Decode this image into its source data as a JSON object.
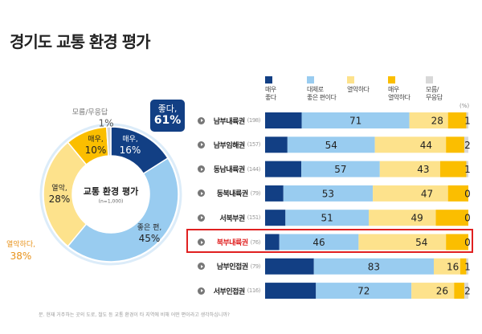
{
  "title": "경기도 교통 환경 평가",
  "footnote": "문. 현재 거주하는 곳의 도로, 철도 등 교통 환경이 타 지역에 비해 어떤 편이라고 생각하십니까?",
  "colors": {
    "very_good": "#123f84",
    "good": "#99ccf0",
    "bad": "#fde28c",
    "very_bad": "#fbbe00",
    "unknown": "#d8d8d8",
    "highlight": "#e02020"
  },
  "chart_data": [
    {
      "type": "pie",
      "variant": "donut",
      "center_title": "교통 환경 평가",
      "center_subtitle": "(n=1,000)",
      "slices": [
        {
          "label_line1": "매우,",
          "value": 16,
          "pct": "16%",
          "color": "#123f84"
        },
        {
          "label_line1": "좋은 편,",
          "value": 45,
          "pct": "45%",
          "color": "#99ccf0"
        },
        {
          "label_line1": "열악,",
          "value": 28,
          "pct": "28%",
          "color": "#fde28c"
        },
        {
          "label_line1": "매우,",
          "value": 10,
          "pct": "10%",
          "color": "#fbbe00"
        },
        {
          "label_line1": "모름/무응답",
          "value": 1,
          "pct": "1%",
          "color": "#d8d8d8"
        }
      ],
      "groups": {
        "good": {
          "label": "좋다,",
          "pct": "61%"
        },
        "bad": {
          "label": "열악하다,",
          "pct": "38%"
        }
      }
    },
    {
      "type": "bar",
      "orientation": "horizontal",
      "stacked": true,
      "unit": "(%)",
      "legend": [
        "매우\n좋다",
        "대체로\n좋은 편이다",
        "열악하다",
        "매우\n열악하다",
        "모름/\n무응답"
      ],
      "legend_placement": "top",
      "rows": [
        {
          "name": "남부내륙권",
          "n": "(198)",
          "very_good": 18,
          "good": 53,
          "good_total": 71,
          "bad": 19,
          "very_bad": 9,
          "bad_total": 28,
          "unknown": 1
        },
        {
          "name": "남부임해권",
          "n": "(157)",
          "very_good": 11,
          "good": 43,
          "good_total": 54,
          "bad": 35,
          "very_bad": 9,
          "bad_total": 44,
          "unknown": 2
        },
        {
          "name": "동남내륙권",
          "n": "(144)",
          "very_good": 18,
          "good": 39,
          "good_total": 57,
          "bad": 30,
          "very_bad": 13,
          "bad_total": 43,
          "unknown": 1
        },
        {
          "name": "동북내륙권",
          "n": "(79)",
          "very_good": 9,
          "good": 44,
          "good_total": 53,
          "bad": 37,
          "very_bad": 10,
          "bad_total": 47,
          "unknown": 0
        },
        {
          "name": "서북부권",
          "n": "(151)",
          "very_good": 10,
          "good": 41,
          "good_total": 51,
          "bad": 33,
          "very_bad": 16,
          "bad_total": 49,
          "unknown": 0
        },
        {
          "name": "북부내륙권",
          "n": "(76)",
          "very_good": 7,
          "good": 39,
          "good_total": 46,
          "bad": 43,
          "very_bad": 11,
          "bad_total": 54,
          "unknown": 0,
          "highlight": true
        },
        {
          "name": "남부인접권",
          "n": "(79)",
          "very_good": 24,
          "good": 59,
          "good_total": 83,
          "bad": 13,
          "very_bad": 3,
          "bad_total": 16,
          "unknown": 1
        },
        {
          "name": "서부인접권",
          "n": "(116)",
          "very_good": 25,
          "good": 47,
          "good_total": 72,
          "bad": 21,
          "very_bad": 5,
          "bad_total": 26,
          "unknown": 2
        }
      ]
    }
  ]
}
